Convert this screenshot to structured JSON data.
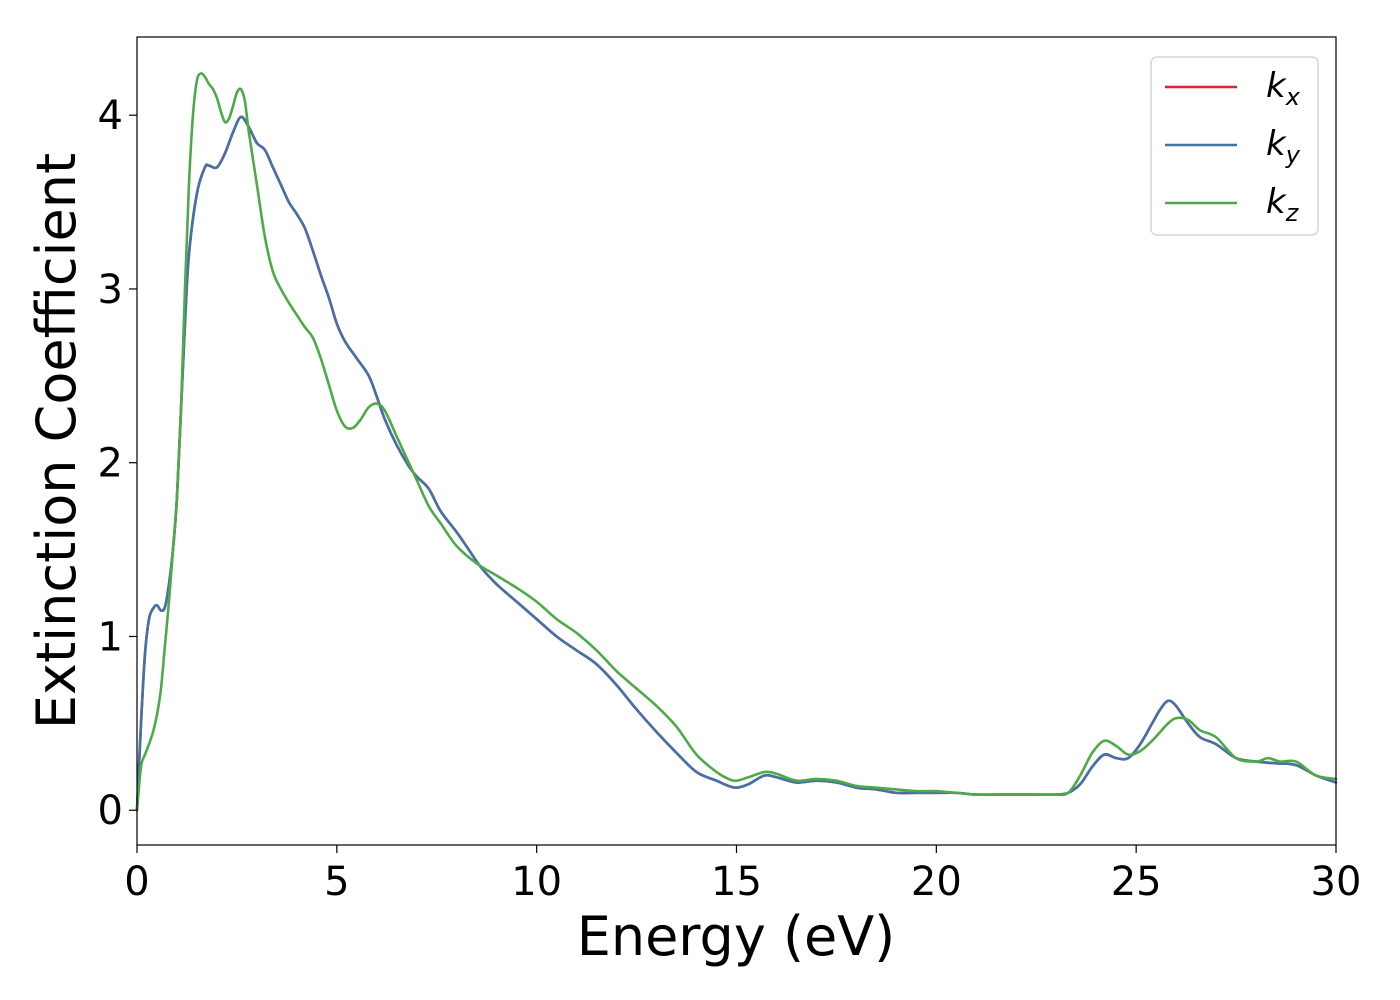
{
  "chart_data": {
    "type": "line",
    "title": "",
    "xlabel": "Energy (eV)",
    "ylabel": "Extinction Coefficient",
    "xlim": [
      0,
      30
    ],
    "ylim": [
      -0.2,
      4.45
    ],
    "xticks": [
      0,
      5,
      10,
      15,
      20,
      25,
      30
    ],
    "yticks": [
      0,
      1,
      2,
      3,
      4
    ],
    "grid": false,
    "legend_position": "top-right",
    "series": [
      {
        "name": "k",
        "subscript": "x",
        "color": "#d62728",
        "x": [
          0,
          0.1,
          0.2,
          0.3,
          0.4,
          0.5,
          0.6,
          0.7,
          0.8,
          0.9,
          1.0,
          1.1,
          1.2,
          1.3,
          1.5,
          1.7,
          1.8,
          2.0,
          2.2,
          2.4,
          2.6,
          2.8,
          3.0,
          3.2,
          3.4,
          3.6,
          3.8,
          4.0,
          4.2,
          4.4,
          4.6,
          4.8,
          5.0,
          5.2,
          5.5,
          5.8,
          6.0,
          6.2,
          6.5,
          6.8,
          7.0,
          7.3,
          7.6,
          8.0,
          8.3,
          8.6,
          9.0,
          9.5,
          10.0,
          10.5,
          11.0,
          11.5,
          12.0,
          12.5,
          13.0,
          13.5,
          14.0,
          14.5,
          14.8,
          15.0,
          15.3,
          15.7,
          16.0,
          16.5,
          17.0,
          17.5,
          18.0,
          18.5,
          19.0,
          19.5,
          20.0,
          20.5,
          21.0,
          21.5,
          22.0,
          22.5,
          23.0,
          23.3,
          23.6,
          23.9,
          24.2,
          24.5,
          24.8,
          25.1,
          25.4,
          25.6,
          25.8,
          26.0,
          26.3,
          26.6,
          27.0,
          27.5,
          28.0,
          28.5,
          29.0,
          29.5,
          30.0
        ],
        "y": [
          0.0,
          0.5,
          0.9,
          1.1,
          1.16,
          1.18,
          1.15,
          1.17,
          1.3,
          1.5,
          1.8,
          2.3,
          2.8,
          3.2,
          3.55,
          3.7,
          3.71,
          3.7,
          3.78,
          3.9,
          3.99,
          3.93,
          3.84,
          3.8,
          3.7,
          3.6,
          3.5,
          3.43,
          3.35,
          3.22,
          3.08,
          2.95,
          2.8,
          2.7,
          2.6,
          2.5,
          2.38,
          2.25,
          2.1,
          1.98,
          1.92,
          1.85,
          1.72,
          1.6,
          1.5,
          1.4,
          1.3,
          1.2,
          1.1,
          1.0,
          0.92,
          0.84,
          0.72,
          0.58,
          0.45,
          0.33,
          0.22,
          0.17,
          0.14,
          0.13,
          0.15,
          0.2,
          0.19,
          0.16,
          0.17,
          0.16,
          0.13,
          0.12,
          0.1,
          0.1,
          0.1,
          0.1,
          0.09,
          0.09,
          0.09,
          0.09,
          0.09,
          0.1,
          0.15,
          0.25,
          0.32,
          0.3,
          0.3,
          0.38,
          0.5,
          0.58,
          0.63,
          0.6,
          0.5,
          0.42,
          0.38,
          0.3,
          0.28,
          0.27,
          0.26,
          0.2,
          0.16
        ]
      },
      {
        "name": "k",
        "subscript": "y",
        "color": "#4471aa",
        "x": [
          0,
          0.1,
          0.2,
          0.3,
          0.4,
          0.5,
          0.6,
          0.7,
          0.8,
          0.9,
          1.0,
          1.1,
          1.2,
          1.3,
          1.5,
          1.7,
          1.8,
          2.0,
          2.2,
          2.4,
          2.6,
          2.8,
          3.0,
          3.2,
          3.4,
          3.6,
          3.8,
          4.0,
          4.2,
          4.4,
          4.6,
          4.8,
          5.0,
          5.2,
          5.5,
          5.8,
          6.0,
          6.2,
          6.5,
          6.8,
          7.0,
          7.3,
          7.6,
          8.0,
          8.3,
          8.6,
          9.0,
          9.5,
          10.0,
          10.5,
          11.0,
          11.5,
          12.0,
          12.5,
          13.0,
          13.5,
          14.0,
          14.5,
          14.8,
          15.0,
          15.3,
          15.7,
          16.0,
          16.5,
          17.0,
          17.5,
          18.0,
          18.5,
          19.0,
          19.5,
          20.0,
          20.5,
          21.0,
          21.5,
          22.0,
          22.5,
          23.0,
          23.3,
          23.6,
          23.9,
          24.2,
          24.5,
          24.8,
          25.1,
          25.4,
          25.6,
          25.8,
          26.0,
          26.3,
          26.6,
          27.0,
          27.5,
          28.0,
          28.5,
          29.0,
          29.5,
          30.0
        ],
        "y": [
          0.0,
          0.5,
          0.9,
          1.1,
          1.16,
          1.18,
          1.15,
          1.17,
          1.3,
          1.5,
          1.8,
          2.3,
          2.8,
          3.2,
          3.55,
          3.7,
          3.71,
          3.7,
          3.78,
          3.9,
          3.99,
          3.93,
          3.84,
          3.8,
          3.7,
          3.6,
          3.5,
          3.43,
          3.35,
          3.22,
          3.08,
          2.95,
          2.8,
          2.7,
          2.6,
          2.5,
          2.38,
          2.25,
          2.1,
          1.98,
          1.92,
          1.85,
          1.72,
          1.6,
          1.5,
          1.4,
          1.3,
          1.2,
          1.1,
          1.0,
          0.92,
          0.84,
          0.72,
          0.58,
          0.45,
          0.33,
          0.22,
          0.17,
          0.14,
          0.13,
          0.15,
          0.2,
          0.19,
          0.16,
          0.17,
          0.16,
          0.13,
          0.12,
          0.1,
          0.1,
          0.1,
          0.1,
          0.09,
          0.09,
          0.09,
          0.09,
          0.09,
          0.1,
          0.15,
          0.25,
          0.32,
          0.3,
          0.3,
          0.38,
          0.5,
          0.58,
          0.63,
          0.6,
          0.5,
          0.42,
          0.38,
          0.3,
          0.28,
          0.27,
          0.26,
          0.2,
          0.16
        ]
      },
      {
        "name": "k",
        "subscript": "z",
        "color": "#4dab47",
        "x": [
          0,
          0.1,
          0.2,
          0.3,
          0.4,
          0.5,
          0.6,
          0.7,
          0.8,
          0.9,
          1.0,
          1.1,
          1.2,
          1.3,
          1.4,
          1.5,
          1.6,
          1.7,
          1.8,
          1.9,
          2.0,
          2.1,
          2.2,
          2.3,
          2.4,
          2.5,
          2.6,
          2.7,
          2.8,
          3.0,
          3.2,
          3.4,
          3.6,
          3.8,
          4.0,
          4.2,
          4.4,
          4.6,
          4.8,
          5.0,
          5.2,
          5.4,
          5.6,
          5.8,
          6.0,
          6.2,
          6.5,
          6.8,
          7.0,
          7.3,
          7.6,
          8.0,
          8.5,
          9.0,
          9.5,
          10.0,
          10.5,
          11.0,
          11.5,
          12.0,
          12.5,
          13.0,
          13.5,
          14.0,
          14.5,
          14.8,
          15.0,
          15.3,
          15.7,
          16.0,
          16.5,
          17.0,
          17.5,
          18.0,
          18.5,
          19.0,
          19.5,
          20.0,
          20.5,
          21.0,
          21.5,
          22.0,
          22.5,
          23.0,
          23.3,
          23.6,
          23.9,
          24.2,
          24.5,
          24.8,
          25.1,
          25.4,
          25.6,
          25.8,
          26.0,
          26.3,
          26.6,
          27.0,
          27.5,
          28.0,
          28.3,
          28.6,
          29.0,
          29.5,
          30.0
        ],
        "y": [
          0.0,
          0.25,
          0.32,
          0.38,
          0.45,
          0.55,
          0.7,
          0.95,
          1.2,
          1.5,
          1.8,
          2.3,
          3.0,
          3.6,
          4.0,
          4.2,
          4.24,
          4.22,
          4.18,
          4.15,
          4.1,
          4.02,
          3.96,
          3.98,
          4.05,
          4.13,
          4.15,
          4.08,
          3.9,
          3.6,
          3.3,
          3.1,
          3.0,
          2.92,
          2.85,
          2.78,
          2.72,
          2.6,
          2.45,
          2.3,
          2.21,
          2.2,
          2.25,
          2.32,
          2.34,
          2.3,
          2.15,
          2.0,
          1.9,
          1.75,
          1.65,
          1.52,
          1.42,
          1.35,
          1.28,
          1.2,
          1.1,
          1.02,
          0.92,
          0.8,
          0.7,
          0.6,
          0.48,
          0.32,
          0.22,
          0.18,
          0.17,
          0.19,
          0.22,
          0.21,
          0.17,
          0.18,
          0.17,
          0.14,
          0.13,
          0.12,
          0.11,
          0.11,
          0.1,
          0.09,
          0.09,
          0.09,
          0.09,
          0.09,
          0.1,
          0.2,
          0.33,
          0.4,
          0.37,
          0.32,
          0.34,
          0.4,
          0.45,
          0.5,
          0.53,
          0.52,
          0.46,
          0.42,
          0.3,
          0.28,
          0.3,
          0.28,
          0.28,
          0.2,
          0.18
        ]
      }
    ]
  }
}
